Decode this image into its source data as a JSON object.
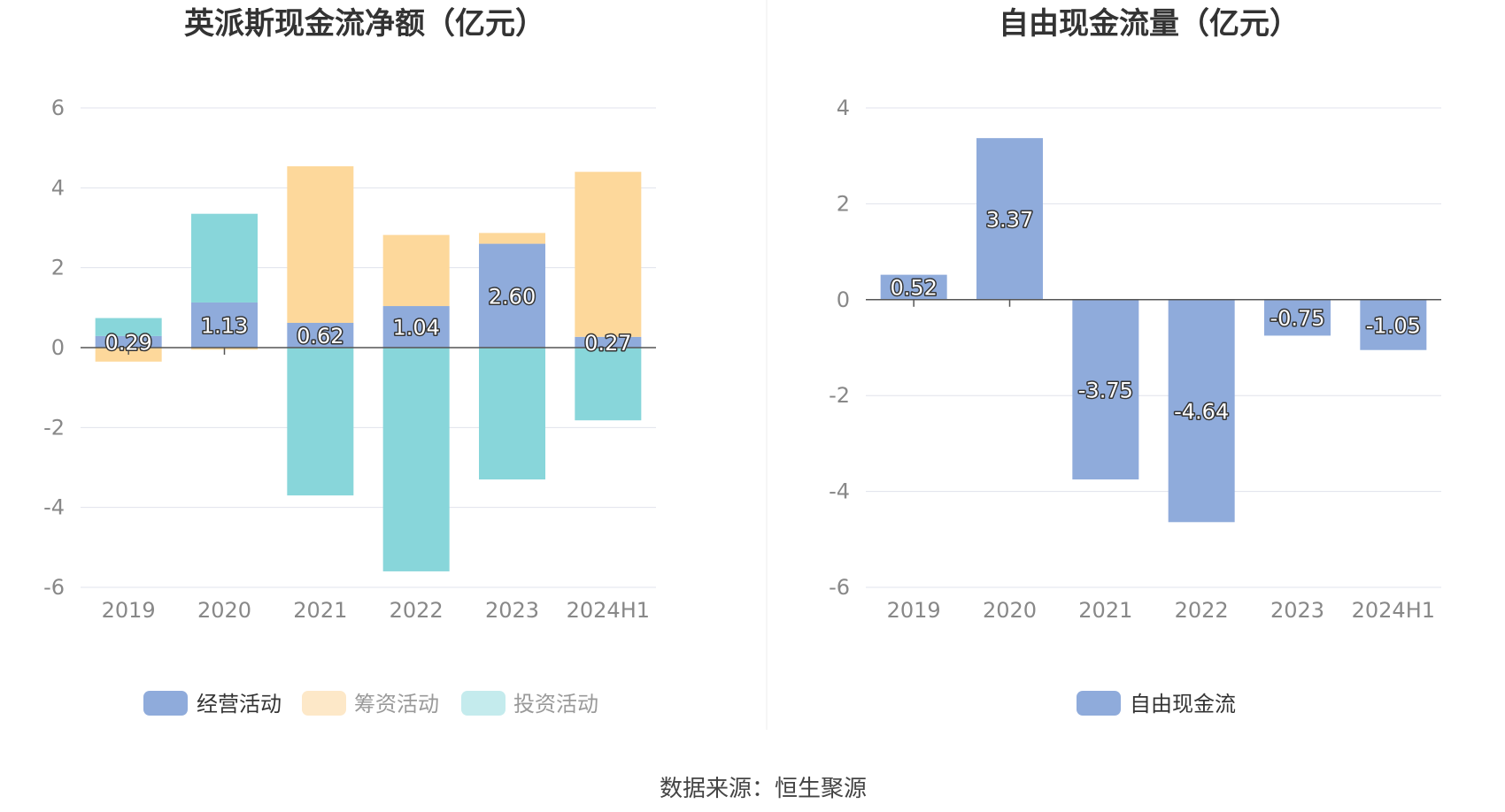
{
  "colors": {
    "operating": "#8fabdb",
    "financing": "#fdd89b",
    "investing": "#88d6da",
    "legend_financing": "#fde8c8",
    "legend_investing": "#c4ebed",
    "grid": "#e0e3ec",
    "axis": "#555555",
    "divider": "#eeeeee"
  },
  "source": "数据来源：恒生聚源",
  "chart_data": [
    {
      "type": "bar",
      "stacked": true,
      "title": "英派斯现金流净额（亿元）",
      "categories": [
        "2019",
        "2020",
        "2021",
        "2022",
        "2023",
        "2024H1"
      ],
      "ylim": [
        -6,
        6
      ],
      "yticks": [
        "6",
        "4",
        "2",
        "0",
        "-2",
        "-4",
        "-6"
      ],
      "grid": true,
      "legend_position": "bottom",
      "series": [
        {
          "name": "经营活动",
          "color_key": "operating",
          "values": [
            0.29,
            1.13,
            0.62,
            1.04,
            2.6,
            0.27
          ],
          "labels": [
            "0.29",
            "1.13",
            "0.62",
            "1.04",
            "2.60",
            "0.27"
          ]
        },
        {
          "name": "筹资活动",
          "color_key": "financing",
          "values": [
            -0.35,
            -0.05,
            3.92,
            1.78,
            0.27,
            4.13
          ]
        },
        {
          "name": "投资活动",
          "color_key": "investing",
          "values": [
            0.45,
            2.22,
            -3.7,
            -5.6,
            -3.3,
            -1.82
          ]
        }
      ]
    },
    {
      "type": "bar",
      "title": "自由现金流量（亿元）",
      "categories": [
        "2019",
        "2020",
        "2021",
        "2022",
        "2023",
        "2024H1"
      ],
      "ylim": [
        -6,
        4
      ],
      "yticks": [
        "4",
        "2",
        "0",
        "-2",
        "-4",
        "-6"
      ],
      "grid": true,
      "legend_position": "bottom",
      "series": [
        {
          "name": "自由现金流",
          "color_key": "operating",
          "values": [
            0.52,
            3.37,
            -3.75,
            -4.64,
            -0.75,
            -1.05
          ],
          "labels": [
            "0.52",
            "3.37",
            "-3.75",
            "-4.64",
            "-0.75",
            "-1.05"
          ]
        }
      ]
    }
  ]
}
